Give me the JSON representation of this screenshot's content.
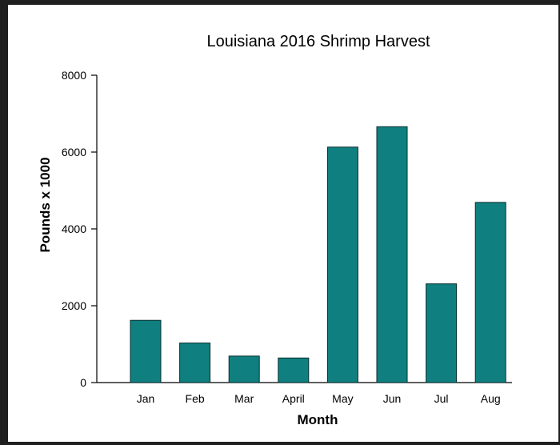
{
  "chart_data": {
    "type": "bar",
    "title": "Louisiana 2016 Shrimp Harvest",
    "xlabel": "Month",
    "ylabel": "Pounds x 1000",
    "categories": [
      "Jan",
      "Feb",
      "Mar",
      "April",
      "May",
      "Jun",
      "Jul",
      "Aug"
    ],
    "values": [
      1620,
      1030,
      690,
      640,
      6130,
      6660,
      2570,
      4690
    ],
    "ylim": [
      0,
      8000
    ],
    "yticks": [
      "0",
      "2000",
      "4000",
      "6000",
      "8000"
    ],
    "grid": false,
    "legend": "none",
    "colors": {
      "bar": "#0f7f7f",
      "bar_edge": "#0a2e2e",
      "axis": "#000000"
    }
  }
}
